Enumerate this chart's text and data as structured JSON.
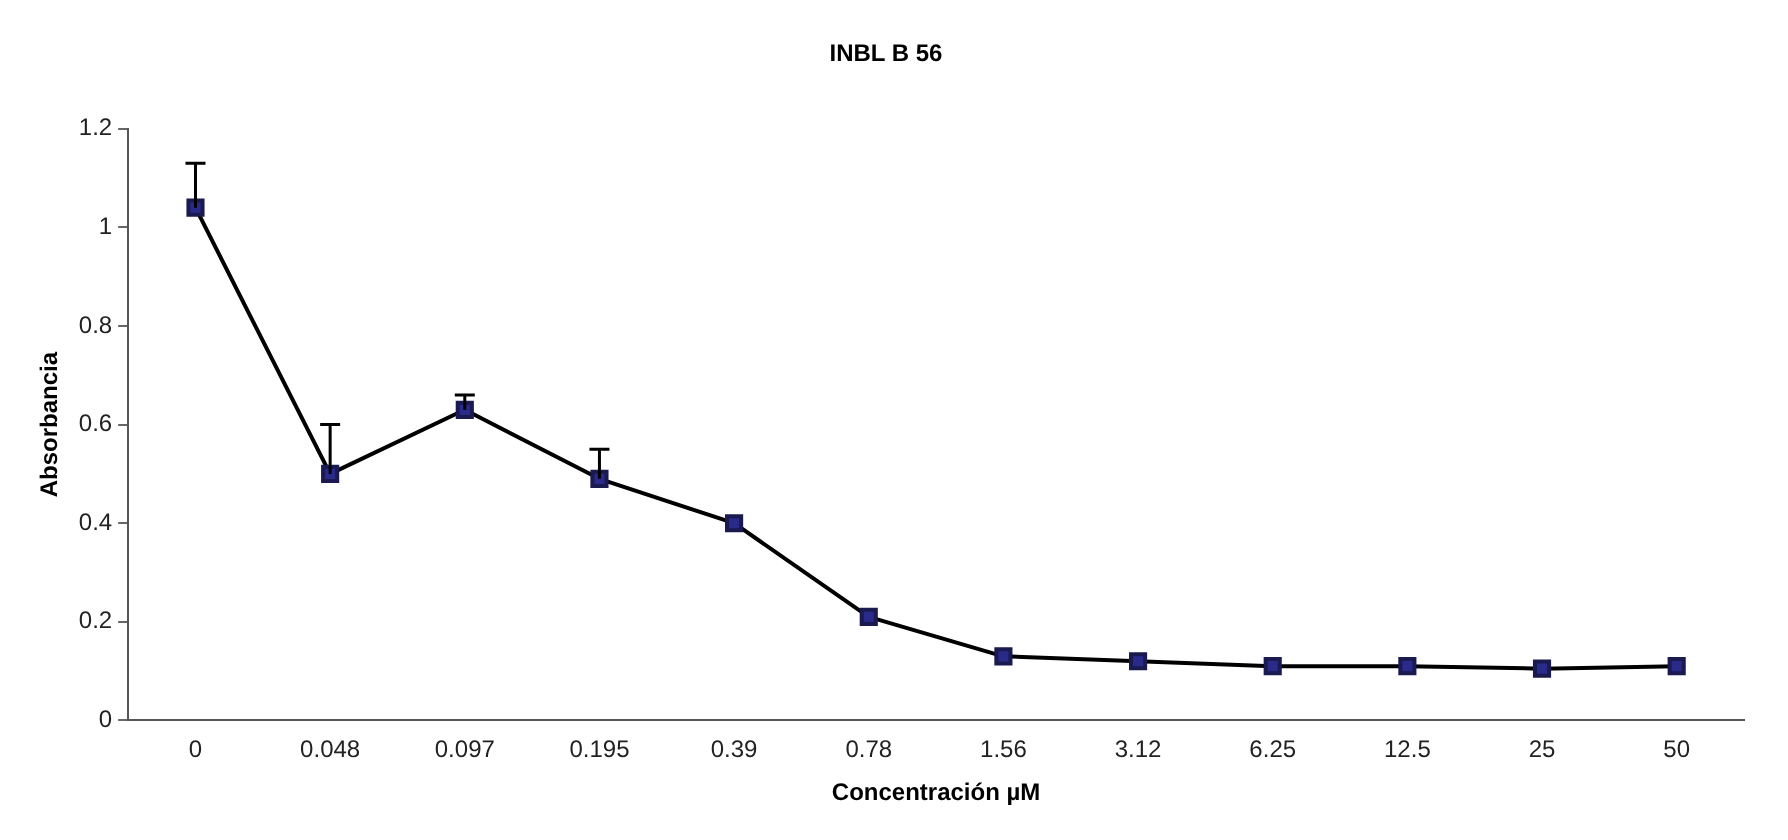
{
  "chart_data": {
    "type": "line",
    "title": "INBL B 56",
    "xlabel": "Concentración µM",
    "ylabel": "Absorbancia",
    "categories": [
      "0",
      "0.048",
      "0.097",
      "0.195",
      "0.39",
      "0.78",
      "1.56",
      "3.12",
      "6.25",
      "12.5",
      "25",
      "50"
    ],
    "series": [
      {
        "color": "#2a2a8a",
        "values": [
          1.04,
          0.5,
          0.63,
          0.49,
          0.4,
          0.21,
          0.13,
          0.12,
          0.11,
          0.11,
          0.105,
          0.11
        ],
        "errors": [
          [
            1.04,
            1.13
          ],
          [
            0.5,
            0.6
          ],
          [
            0.63,
            0.66
          ],
          [
            0.49,
            0.55
          ],
          null,
          null,
          null,
          null,
          null,
          null,
          null,
          null
        ]
      }
    ],
    "ylim": [
      0,
      1.2
    ],
    "yticks": [
      0,
      0.2,
      0.4,
      0.6,
      0.8,
      1,
      1.2
    ],
    "grid": false,
    "legend": false,
    "marker": "square",
    "line_style": "solid"
  }
}
